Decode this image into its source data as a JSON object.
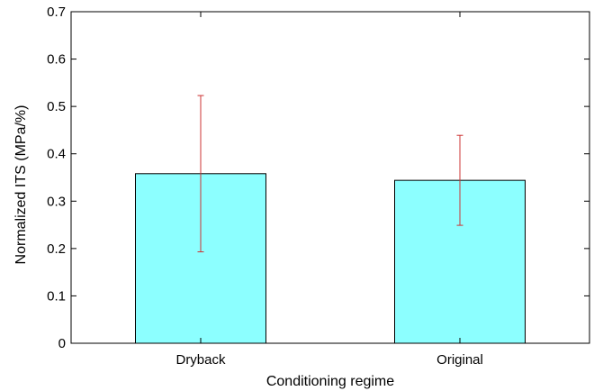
{
  "chart_data": {
    "type": "bar",
    "categories": [
      "Dryback",
      "Original"
    ],
    "values": [
      0.358,
      0.344
    ],
    "error_low": [
      0.193,
      0.249
    ],
    "error_high": [
      0.523,
      0.439
    ],
    "xlabel": "Conditioning regime",
    "ylabel": "Normalized ITS (MPa/%)",
    "ylim": [
      0,
      0.7
    ],
    "yticks": [
      0,
      0.1,
      0.2,
      0.3,
      0.4,
      0.5,
      0.6,
      0.7
    ],
    "ytick_labels": [
      "0",
      "0.1",
      "0.2",
      "0.3",
      "0.4",
      "0.5",
      "0.6",
      "0.7"
    ],
    "grid": false,
    "legend": "none",
    "colors": {
      "bar_fill": "#8cffff",
      "bar_edge": "#000000",
      "error_bar": "#cc3333",
      "axis": "#000000"
    }
  }
}
